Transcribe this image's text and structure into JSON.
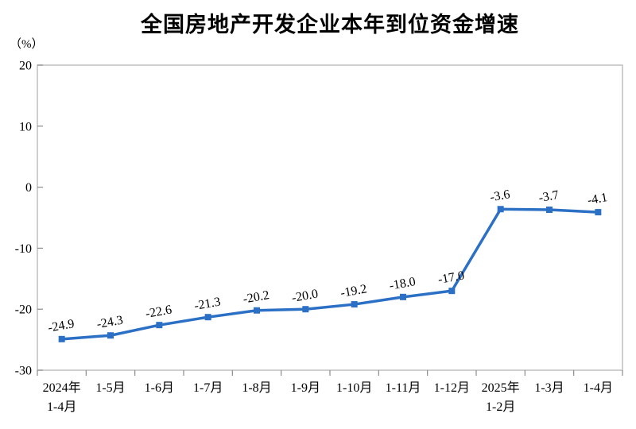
{
  "header": {
    "title": "全国房地产开发企业本年到位资金增速"
  },
  "chart_data": {
    "type": "line",
    "title": "全国房地产开发企业本年到位资金增速",
    "unit_label": "（%）",
    "categories": [
      "2024年1-4月",
      "1-5月",
      "1-6月",
      "1-7月",
      "1-8月",
      "1-9月",
      "1-10月",
      "1-11月",
      "1-12月",
      "2025年1-2月",
      "1-3月",
      "1-4月"
    ],
    "category_display_lines": [
      [
        "2024年",
        "1-4月"
      ],
      [
        "1-5月"
      ],
      [
        "1-6月"
      ],
      [
        "1-7月"
      ],
      [
        "1-8月"
      ],
      [
        "1-9月"
      ],
      [
        "1-10月"
      ],
      [
        "1-11月"
      ],
      [
        "1-12月"
      ],
      [
        "2025年",
        "1-2月"
      ],
      [
        "1-3月"
      ],
      [
        "1-4月"
      ]
    ],
    "values": [
      -24.9,
      -24.3,
      -22.6,
      -21.3,
      -20.2,
      -20.0,
      -19.2,
      -18.0,
      -17.0,
      -3.6,
      -3.7,
      -4.1
    ],
    "data_labels": [
      "-24.9",
      "-24.3",
      "-22.6",
      "-21.3",
      "-20.2",
      "-20.0",
      "-19.2",
      "-18.0",
      "-17.0",
      "-3.6",
      "-3.7",
      "-4.1"
    ],
    "y_ticks": [
      20,
      10,
      0,
      -10,
      -20,
      -30
    ],
    "ylim": [
      -30,
      20
    ],
    "ylabel": "（%）",
    "xlabel": "",
    "grid": false,
    "legend_position": "none",
    "line_color": "#2B70C5",
    "marker": "square",
    "axis_color": "#bfbfbf",
    "tick_color": "#8c8c8c",
    "text_color": "#000000"
  }
}
